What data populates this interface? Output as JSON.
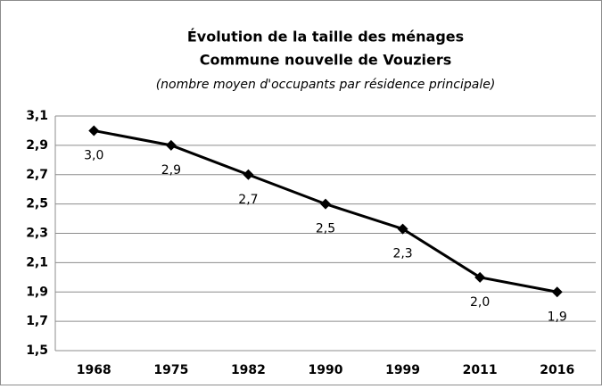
{
  "chart_data": {
    "type": "line",
    "title": "Évolution de la taille des ménages",
    "subtitle": "Commune nouvelle de Vouziers",
    "note": "(nombre moyen d'occupants par résidence principale)",
    "categories": [
      "1968",
      "1975",
      "1982",
      "1990",
      "1999",
      "2011",
      "2016"
    ],
    "values": [
      3.0,
      2.9,
      2.7,
      2.5,
      2.33,
      2.0,
      1.9
    ],
    "value_labels": [
      "3,0",
      "2,9",
      "2,7",
      "2,5",
      "2,3",
      "2,0",
      "1,9"
    ],
    "color": "#000000",
    "ylim": [
      1.5,
      3.1
    ],
    "yticks": [
      {
        "value": 1.5,
        "label": "1,5"
      },
      {
        "value": 1.7,
        "label": "1,7"
      },
      {
        "value": 1.9,
        "label": "1,9"
      },
      {
        "value": 2.1,
        "label": "2,1"
      },
      {
        "value": 2.3,
        "label": "2,3"
      },
      {
        "value": 2.5,
        "label": "2,5"
      },
      {
        "value": 2.7,
        "label": "2,7"
      },
      {
        "value": 2.9,
        "label": "2,9"
      },
      {
        "value": 3.1,
        "label": "3,1"
      }
    ],
    "grid": true
  }
}
